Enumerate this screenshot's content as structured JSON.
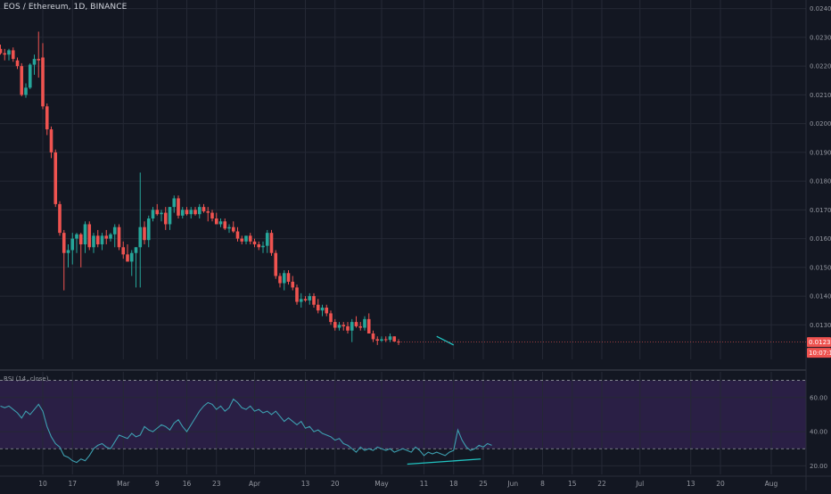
{
  "header": {
    "symbol_line": "EOS / Ethereum, 1D, BINANCE"
  },
  "rsi": {
    "label": "RSI (14, close)",
    "ticks": [
      "60.00",
      "40.00",
      "20.00"
    ],
    "upper_band": 70,
    "lower_band": 30
  },
  "price_tags": {
    "last_price": "0.012397",
    "countdown": "10:07:11"
  },
  "colors": {
    "up": "#26a69a",
    "down": "#ef5350",
    "rsi_line": "#3d9fb0",
    "divergence": "#21c3c1",
    "rsi_band": "#2a1f45",
    "background": "#131722"
  },
  "chart_data": [
    {
      "type": "candlestick",
      "symbol": "EOS / Ethereum",
      "interval": "1D",
      "exchange": "BINANCE",
      "y_ticks": [
        "0.024000",
        "0.023000",
        "0.022000",
        "0.021000",
        "0.020000",
        "0.019000",
        "0.018000",
        "0.017000",
        "0.016000",
        "0.015000",
        "0.014000",
        "0.013000"
      ],
      "ylim": [
        0.0118,
        0.0243
      ],
      "x_ticks": [
        {
          "day": 10,
          "label": "10"
        },
        {
          "day": 17,
          "label": "17"
        },
        {
          "day": 29,
          "label": "Mar"
        },
        {
          "day": 37,
          "label": "9"
        },
        {
          "day": 44,
          "label": "16"
        },
        {
          "day": 51,
          "label": "23"
        },
        {
          "day": 60,
          "label": "Apr"
        },
        {
          "day": 72,
          "label": "13"
        },
        {
          "day": 79,
          "label": "20"
        },
        {
          "day": 90,
          "label": "May"
        },
        {
          "day": 100,
          "label": "11"
        },
        {
          "day": 107,
          "label": "18"
        },
        {
          "day": 114,
          "label": "25"
        },
        {
          "day": 121,
          "label": "Jun"
        },
        {
          "day": 128,
          "label": "8"
        },
        {
          "day": 135,
          "label": "15"
        },
        {
          "day": 142,
          "label": "22"
        },
        {
          "day": 151,
          "label": "Jul"
        },
        {
          "day": 163,
          "label": "13"
        },
        {
          "day": 170,
          "label": "20"
        },
        {
          "day": 182,
          "label": "Aug"
        }
      ],
      "candles": [
        [
          0.0226,
          0.02275,
          0.0224,
          0.02245
        ],
        [
          0.02245,
          0.0226,
          0.0222,
          0.0224
        ],
        [
          0.0224,
          0.0226,
          0.0222,
          0.02255
        ],
        [
          0.02255,
          0.02265,
          0.02215,
          0.02225
        ],
        [
          0.0222,
          0.0223,
          0.0219,
          0.022
        ],
        [
          0.022,
          0.0221,
          0.02095,
          0.021
        ],
        [
          0.021,
          0.0214,
          0.0209,
          0.02125
        ],
        [
          0.02125,
          0.0221,
          0.0212,
          0.02205
        ],
        [
          0.02205,
          0.0224,
          0.0217,
          0.02225
        ],
        [
          0.02225,
          0.0232,
          0.0216,
          0.0222
        ],
        [
          0.0223,
          0.0228,
          0.0205,
          0.0206
        ],
        [
          0.0206,
          0.0207,
          0.0196,
          0.0198
        ],
        [
          0.0198,
          0.0199,
          0.0188,
          0.019
        ],
        [
          0.019,
          0.0191,
          0.0171,
          0.0172
        ],
        [
          0.0172,
          0.0173,
          0.0161,
          0.0162
        ],
        [
          0.0162,
          0.0163,
          0.0142,
          0.0155
        ],
        [
          0.0155,
          0.0158,
          0.015,
          0.0156
        ],
        [
          0.0156,
          0.0162,
          0.0151,
          0.016
        ],
        [
          0.016,
          0.0162,
          0.0155,
          0.01615
        ],
        [
          0.01615,
          0.0162,
          0.015,
          0.0158
        ],
        [
          0.0158,
          0.0166,
          0.0155,
          0.0165
        ],
        [
          0.0165,
          0.0166,
          0.0156,
          0.0157
        ],
        [
          0.0157,
          0.0162,
          0.0155,
          0.0161
        ],
        [
          0.0161,
          0.0163,
          0.0157,
          0.0158
        ],
        [
          0.0158,
          0.0162,
          0.0156,
          0.0161
        ],
        [
          0.0161,
          0.0163,
          0.0158,
          0.016
        ],
        [
          0.016,
          0.0162,
          0.0159,
          0.01615
        ],
        [
          0.01615,
          0.0165,
          0.0157,
          0.0164
        ],
        [
          0.0164,
          0.0165,
          0.0156,
          0.0157
        ],
        [
          0.0157,
          0.0159,
          0.0153,
          0.01545
        ],
        [
          0.01545,
          0.0158,
          0.0152,
          0.0152
        ],
        [
          0.0152,
          0.0156,
          0.0147,
          0.0155
        ],
        [
          0.0155,
          0.0157,
          0.0143,
          0.0157
        ],
        [
          0.0157,
          0.0183,
          0.0143,
          0.0164
        ],
        [
          0.0164,
          0.0166,
          0.0158,
          0.01595
        ],
        [
          0.01595,
          0.0168,
          0.0157,
          0.0167
        ],
        [
          0.0167,
          0.0171,
          0.0166,
          0.017
        ],
        [
          0.017,
          0.0172,
          0.0168,
          0.01685
        ],
        [
          0.01685,
          0.017,
          0.0166,
          0.0169
        ],
        [
          0.0169,
          0.0171,
          0.0163,
          0.0165
        ],
        [
          0.0165,
          0.0171,
          0.0163,
          0.0171
        ],
        [
          0.0171,
          0.0175,
          0.0169,
          0.0174
        ],
        [
          0.0174,
          0.0175,
          0.0167,
          0.0168
        ],
        [
          0.0168,
          0.0171,
          0.0167,
          0.017
        ],
        [
          0.017,
          0.0171,
          0.0168,
          0.01685
        ],
        [
          0.01685,
          0.0171,
          0.0167,
          0.017
        ],
        [
          0.017,
          0.0171,
          0.0168,
          0.01685
        ],
        [
          0.01685,
          0.0172,
          0.0167,
          0.0171
        ],
        [
          0.0171,
          0.0172,
          0.0169,
          0.01695
        ],
        [
          0.01695,
          0.0171,
          0.0166,
          0.0169
        ],
        [
          0.0169,
          0.017,
          0.0166,
          0.0167
        ],
        [
          0.0167,
          0.0169,
          0.0165,
          0.0165
        ],
        [
          0.0165,
          0.0167,
          0.0164,
          0.0166
        ],
        [
          0.0166,
          0.0167,
          0.0163,
          0.01635
        ],
        [
          0.01635,
          0.0165,
          0.0162,
          0.0164
        ],
        [
          0.0164,
          0.0166,
          0.0162,
          0.01625
        ],
        [
          0.01625,
          0.0164,
          0.0159,
          0.016
        ],
        [
          0.016,
          0.0161,
          0.0158,
          0.0159
        ],
        [
          0.0159,
          0.0161,
          0.0158,
          0.0161
        ],
        [
          0.0161,
          0.0162,
          0.0158,
          0.0159
        ],
        [
          0.0159,
          0.016,
          0.0157,
          0.0158
        ],
        [
          0.0158,
          0.0159,
          0.0156,
          0.0157
        ],
        [
          0.0157,
          0.0159,
          0.0155,
          0.01575
        ],
        [
          0.01575,
          0.0163,
          0.0155,
          0.0162
        ],
        [
          0.0162,
          0.0163,
          0.0154,
          0.0155
        ],
        [
          0.0155,
          0.0156,
          0.0146,
          0.0147
        ],
        [
          0.0147,
          0.0148,
          0.0143,
          0.01445
        ],
        [
          0.01445,
          0.0149,
          0.0142,
          0.0148
        ],
        [
          0.0148,
          0.0149,
          0.0144,
          0.0145
        ],
        [
          0.0145,
          0.0147,
          0.0142,
          0.0143
        ],
        [
          0.0143,
          0.0144,
          0.0137,
          0.0138
        ],
        [
          0.0138,
          0.0141,
          0.0136,
          0.0139
        ],
        [
          0.0139,
          0.014,
          0.0138,
          0.01385
        ],
        [
          0.01385,
          0.0141,
          0.0137,
          0.014
        ],
        [
          0.014,
          0.0141,
          0.0136,
          0.0137
        ],
        [
          0.0137,
          0.0139,
          0.0134,
          0.0135
        ],
        [
          0.0135,
          0.0137,
          0.0133,
          0.0136
        ],
        [
          0.0136,
          0.0137,
          0.0133,
          0.0134
        ],
        [
          0.0134,
          0.0135,
          0.013,
          0.0131
        ],
        [
          0.0131,
          0.0132,
          0.0128,
          0.0129
        ],
        [
          0.0129,
          0.0131,
          0.0128,
          0.013
        ],
        [
          0.013,
          0.0131,
          0.0128,
          0.01295
        ],
        [
          0.01295,
          0.0131,
          0.0127,
          0.0128
        ],
        [
          0.0128,
          0.0132,
          0.0124,
          0.0131
        ],
        [
          0.0131,
          0.0133,
          0.0129,
          0.01295
        ],
        [
          0.01295,
          0.0131,
          0.0128,
          0.0129
        ],
        [
          0.0129,
          0.0133,
          0.0128,
          0.0132
        ],
        [
          0.0132,
          0.0134,
          0.0127,
          0.0127
        ],
        [
          0.0127,
          0.0128,
          0.0124,
          0.0125
        ],
        [
          0.0125,
          0.0126,
          0.0123,
          0.01245
        ],
        [
          0.01245,
          0.0126,
          0.0124,
          0.0125
        ],
        [
          0.0125,
          0.0126,
          0.0124,
          0.01248
        ],
        [
          0.01248,
          0.0127,
          0.0124,
          0.0126
        ],
        [
          0.0126,
          0.0126,
          0.0124,
          0.01242
        ],
        [
          0.01242,
          0.0125,
          0.0123,
          0.0124
        ]
      ],
      "trendline": {
        "from": [
          103,
          0.0126
        ],
        "to": [
          107,
          0.0123
        ]
      }
    },
    {
      "type": "line",
      "name": "RSI (14, close)",
      "ylim": [
        15,
        75
      ],
      "y_ticks": [
        60,
        40,
        20
      ],
      "bands": [
        70,
        30
      ],
      "values": [
        55,
        54,
        55,
        53,
        51,
        48,
        52,
        50,
        53,
        56,
        52,
        43,
        37,
        33,
        31,
        26,
        25,
        23,
        22,
        24,
        23,
        26,
        30,
        32,
        33,
        31,
        30,
        34,
        38,
        37,
        36,
        39,
        37,
        38,
        43,
        41,
        40,
        42,
        44,
        43,
        41,
        45,
        47,
        43,
        40,
        44,
        48,
        52,
        55,
        57,
        56,
        53,
        55,
        52,
        54,
        59,
        57,
        54,
        53,
        55,
        52,
        53,
        51,
        52,
        50,
        52,
        49,
        46,
        48,
        46,
        44,
        46,
        42,
        43,
        40,
        41,
        39,
        38,
        37,
        35,
        36,
        33,
        32,
        30,
        28,
        31,
        29,
        30,
        29,
        31,
        30,
        29,
        30,
        28,
        29,
        30,
        29,
        28,
        31,
        29,
        26,
        28,
        27,
        28,
        27,
        26,
        28,
        29,
        41,
        35,
        31,
        29,
        30,
        32,
        31,
        33,
        32
      ],
      "divergence": {
        "from": [
          113,
          21
        ],
        "to": [
          126,
          24
        ]
      }
    }
  ]
}
